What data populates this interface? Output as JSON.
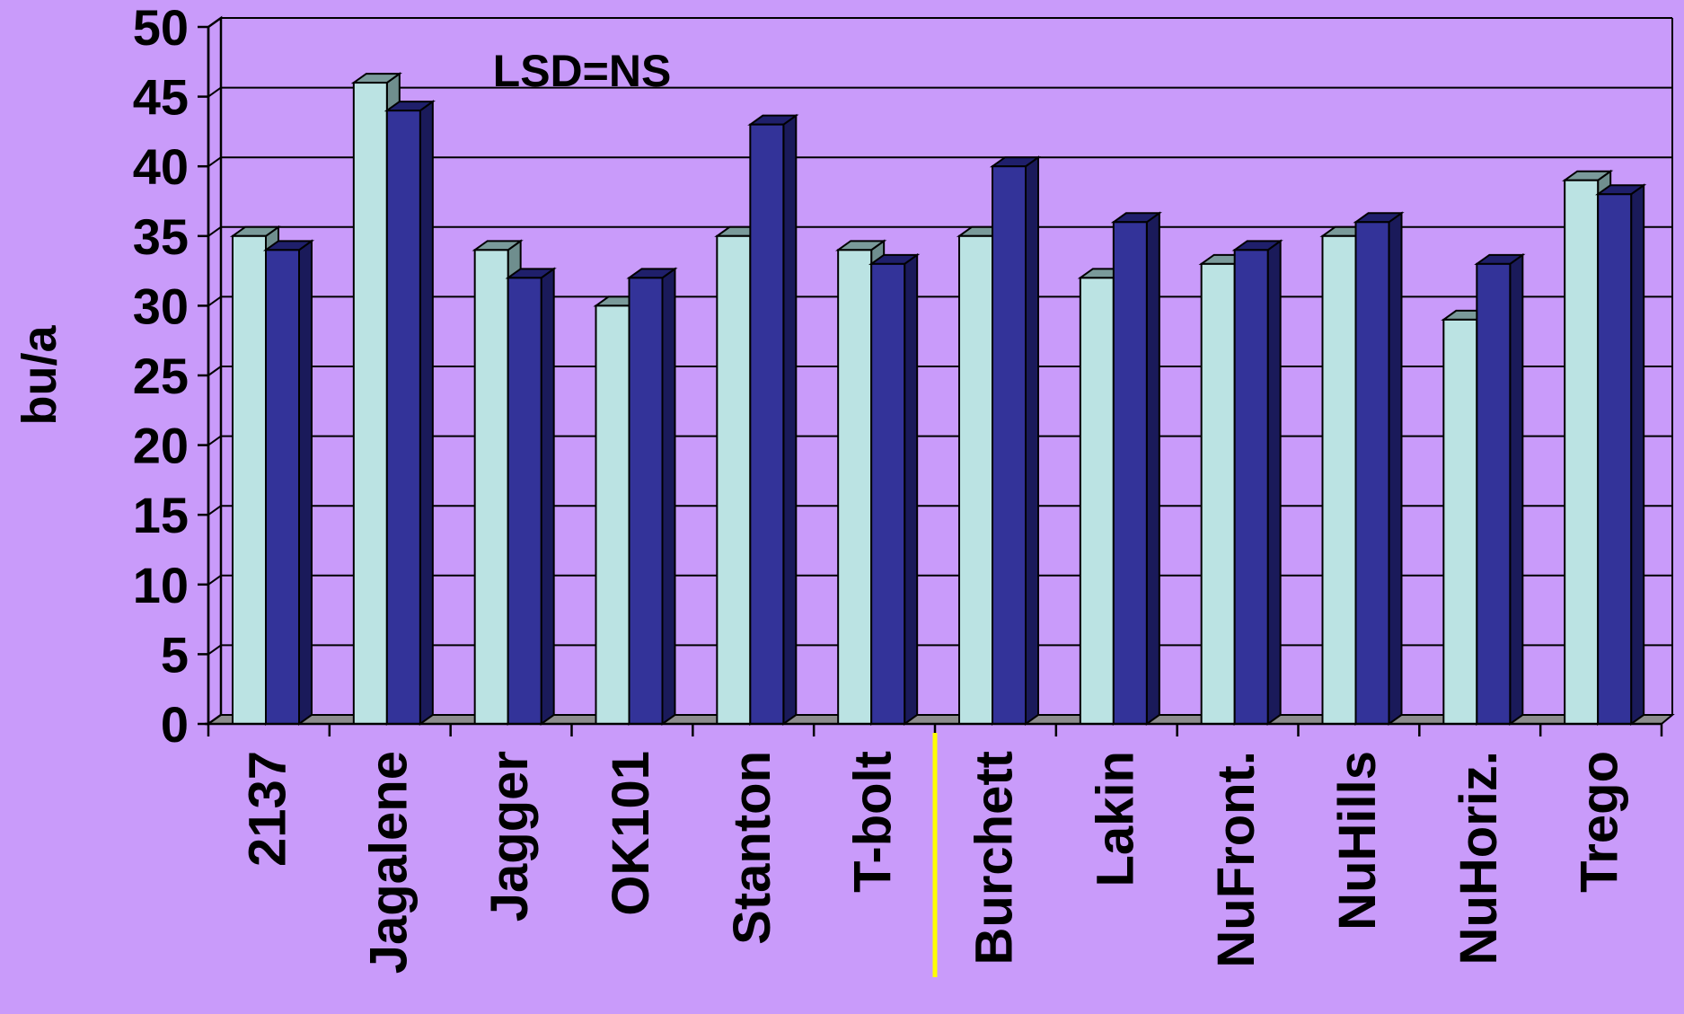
{
  "chart_data": {
    "type": "bar",
    "annotation": "LSD=NS",
    "ylabel": "bu/a",
    "xlabel": "",
    "ylim": [
      0,
      50
    ],
    "yticks": [
      0,
      5,
      10,
      15,
      20,
      25,
      30,
      35,
      40,
      45,
      50
    ],
    "grid": true,
    "legend": "none",
    "categories": [
      "2137",
      "Jagalene",
      "Jagger",
      "OK101",
      "Stanton",
      "T-bolt",
      "Burchett",
      "Lakin",
      "NuFront.",
      "NuHills",
      "NuHoriz.",
      "Trego"
    ],
    "series": [
      {
        "values": [
          35,
          46,
          34,
          30,
          35,
          34,
          35,
          32,
          33,
          35,
          29,
          39
        ]
      },
      {
        "values": [
          34,
          44,
          32,
          32,
          43,
          33,
          40,
          36,
          34,
          36,
          33,
          38
        ]
      }
    ],
    "colors": {
      "background": "#c99bfa",
      "series1": "#bbe3e3",
      "series2": "#333399",
      "divider": "#ffff00",
      "gridline": "#000000"
    }
  }
}
